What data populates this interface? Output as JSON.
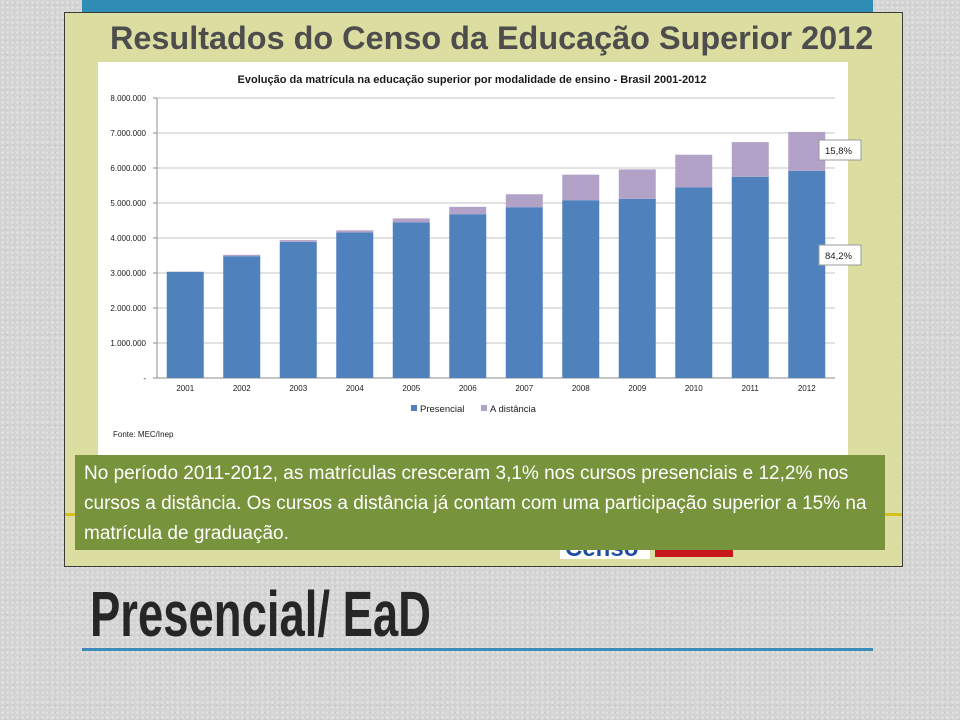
{
  "slide": {
    "heading": "Presencial/ EaD",
    "colors": {
      "accent": "#3d8db8",
      "heading": "#262626",
      "background": "#d4d4d4"
    }
  },
  "embedded_image": {
    "title": "Resultados do Censo da Educação Superior 2012",
    "note_box": {
      "lines": [
        "No período 2011-2012, as matrículas cresceram 3,1% nos cursos presenciais e 12,2% nos",
        "cursos a distância. Os cursos a distância já contam com uma participação superior a 15% na",
        "matrícula de graduação."
      ],
      "background": "#77933c"
    },
    "logos": {
      "censo": "Censo"
    },
    "colors": {
      "frame": "#dcdda0",
      "gold": "#d6c01f"
    }
  },
  "chart_data": {
    "type": "bar",
    "stacked": true,
    "title": "Evolução da matrícula na educação superior por modalidade de ensino - Brasil 2001-2012",
    "categories": [
      "2001",
      "2002",
      "2003",
      "2004",
      "2005",
      "2006",
      "2007",
      "2008",
      "2009",
      "2010",
      "2011",
      "2012"
    ],
    "series": [
      {
        "name": "Presencial",
        "color": "#4f81bd",
        "values": [
          3030000,
          3480000,
          3890000,
          4160000,
          4450000,
          4680000,
          4880000,
          5080000,
          5120000,
          5450000,
          5750000,
          5920000
        ]
      },
      {
        "name": "A distância",
        "color": "#b3a2c7",
        "values": [
          10000,
          40000,
          50000,
          60000,
          110000,
          210000,
          370000,
          730000,
          840000,
          930000,
          990000,
          1110000
        ]
      }
    ],
    "ylim": [
      0,
      8000000
    ],
    "yticks": [
      0,
      1000000,
      2000000,
      3000000,
      4000000,
      5000000,
      6000000,
      7000000,
      8000000
    ],
    "ytick_labels": [
      "-",
      "1.000.000",
      "2.000.000",
      "3.000.000",
      "4.000.000",
      "5.000.000",
      "6.000.000",
      "7.000.000",
      "8.000.000"
    ],
    "xlabel": "",
    "ylabel": "",
    "grid": true,
    "legend": "bottom",
    "annotations": [
      {
        "series": "A distância",
        "text": "15,8%"
      },
      {
        "series": "Presencial",
        "text": "84,2%"
      }
    ],
    "source": "Fonte: MEC/Inep"
  }
}
